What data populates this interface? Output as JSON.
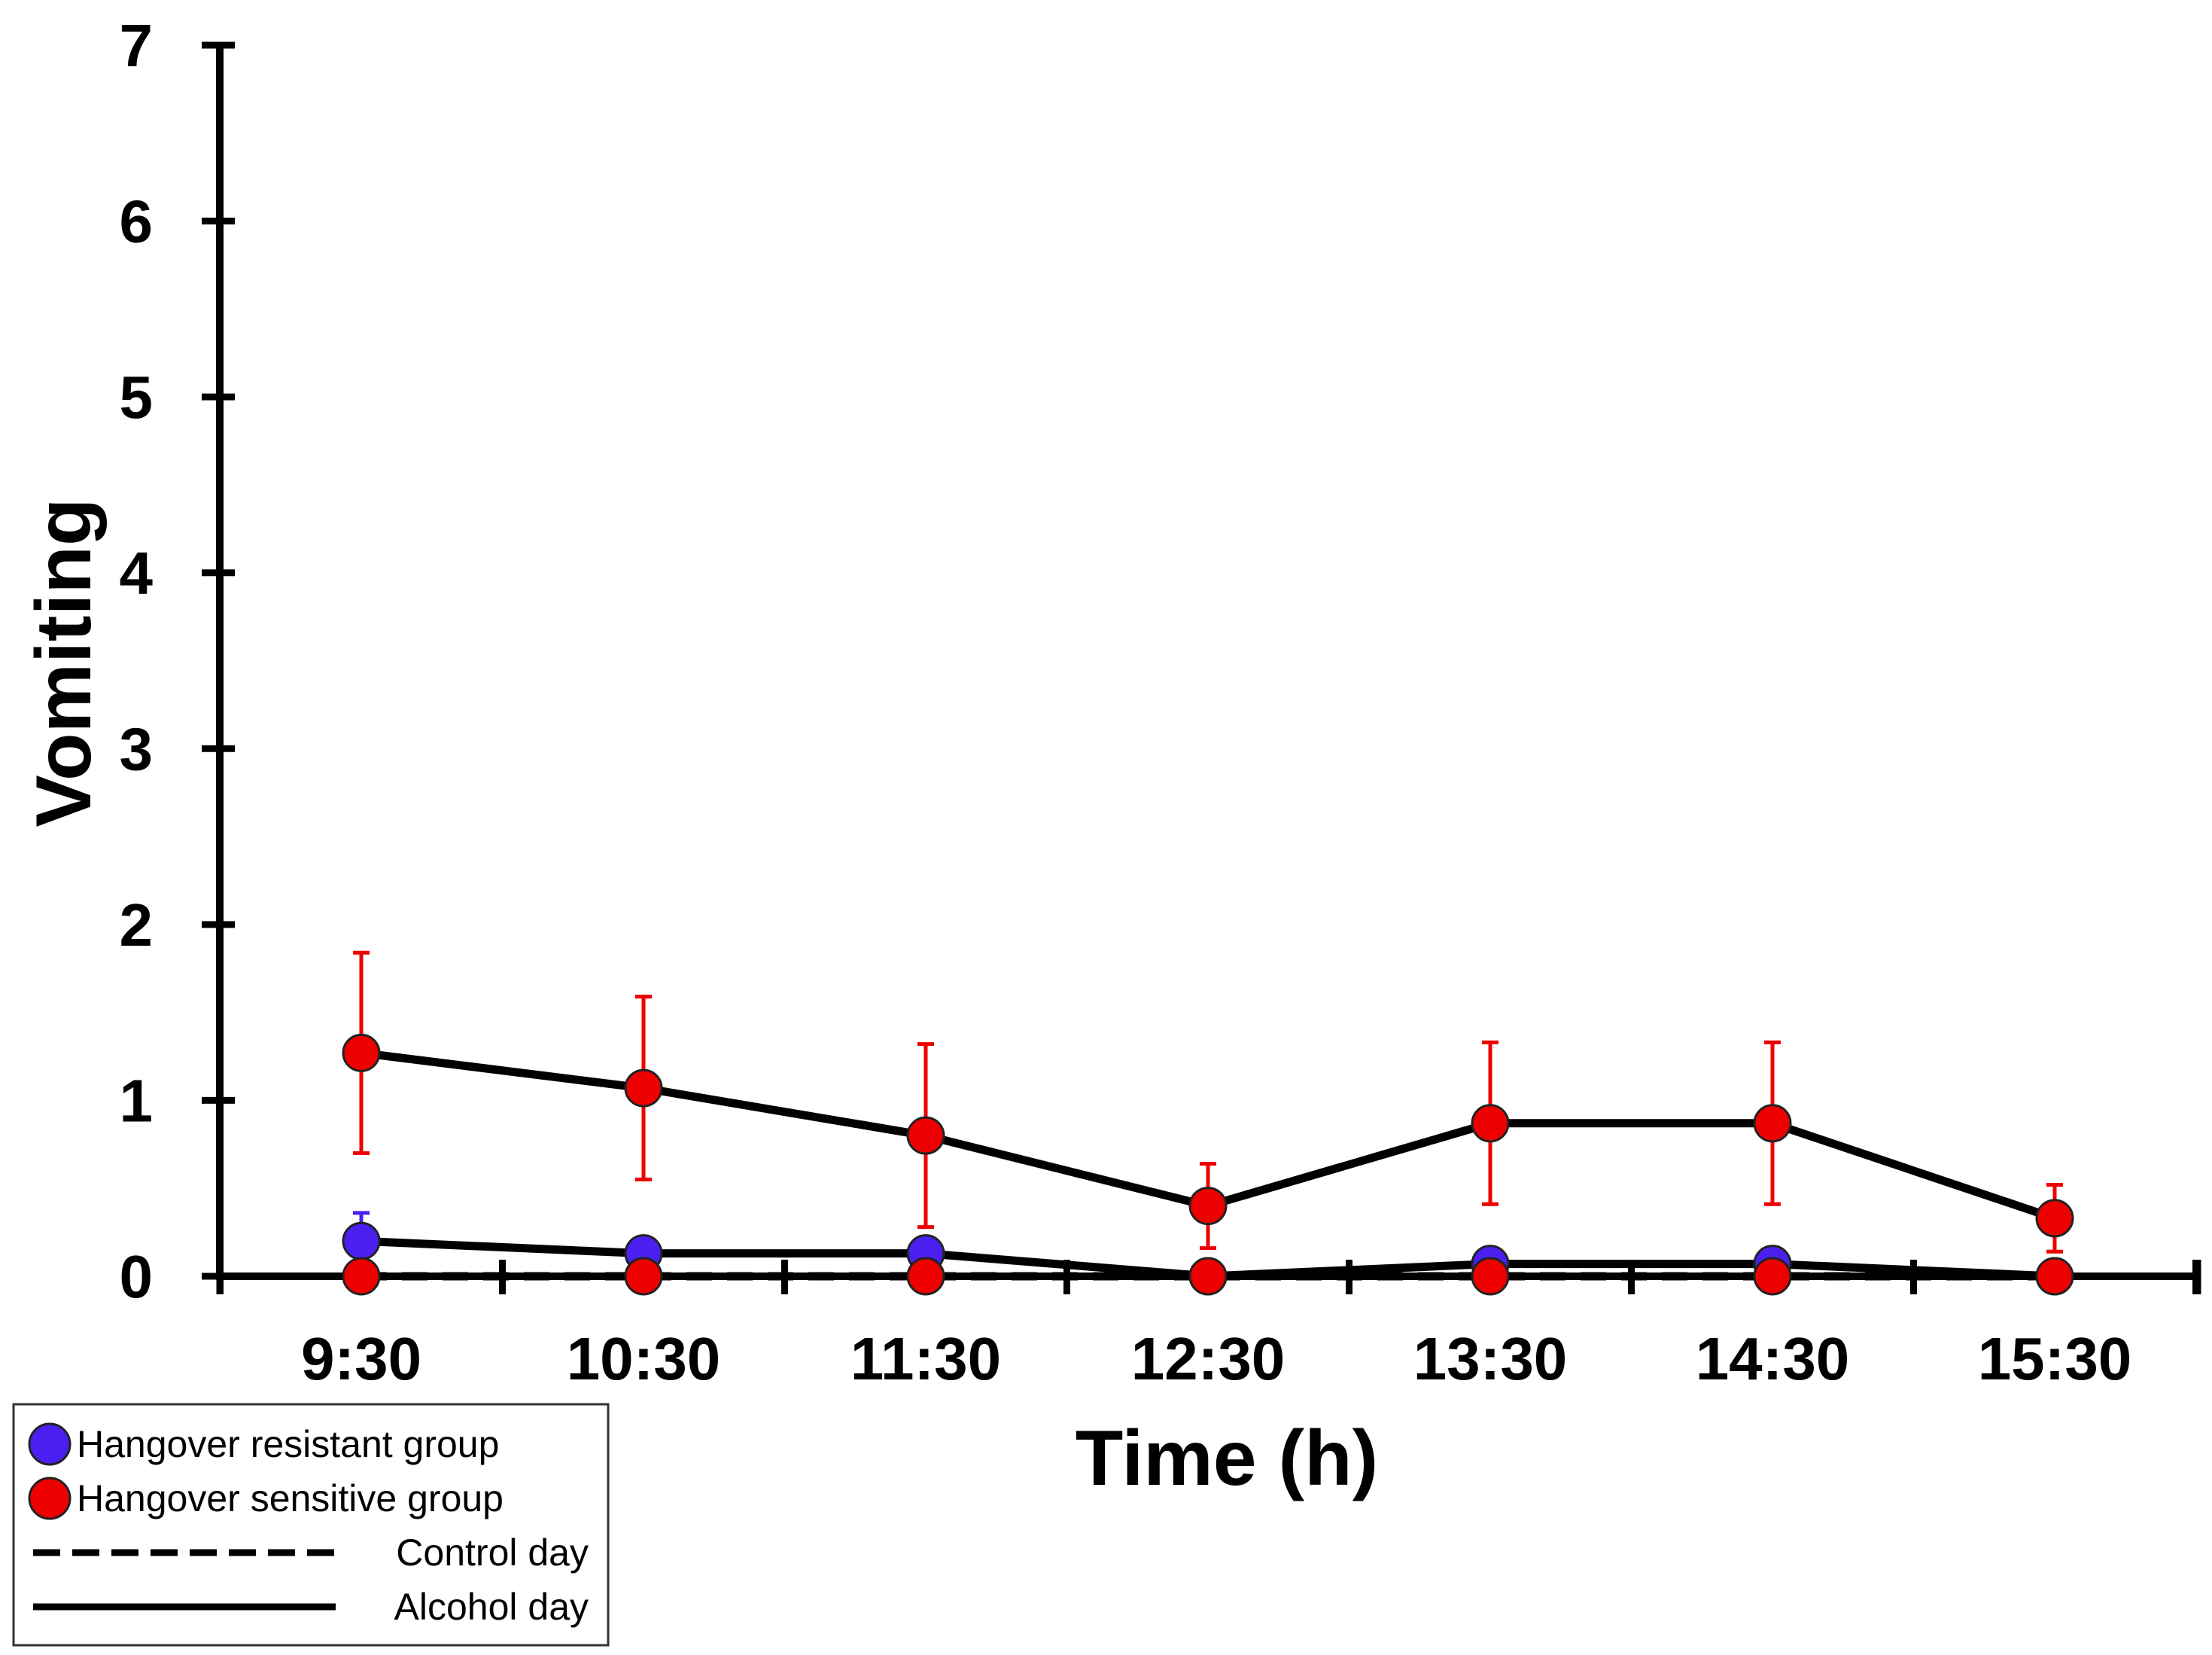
{
  "chart_data": {
    "type": "line",
    "title": "",
    "xlabel": "Time (h)",
    "ylabel": "Vomiting",
    "categories": [
      "9:30",
      "10:30",
      "11:30",
      "12:30",
      "13:30",
      "14:30",
      "15:30"
    ],
    "ylim": [
      0,
      7
    ],
    "yticks": [
      0,
      1,
      2,
      3,
      4,
      5,
      6,
      7
    ],
    "grid": false,
    "legend_position": "bottom-left",
    "series": [
      {
        "name": "Hangover resistant group",
        "day": "Alcohol day",
        "color": "#4a1ff0",
        "line": "solid",
        "values": [
          0.2,
          0.13,
          0.13,
          0.0,
          0.07,
          0.07,
          0.0
        ],
        "err_upper": [
          0.16,
          0.0,
          0.0,
          0.0,
          0.0,
          0.0,
          0.0
        ]
      },
      {
        "name": "Hangover sensitive group",
        "day": "Alcohol day",
        "color": "#ee0000",
        "line": "solid",
        "values": [
          1.27,
          1.07,
          0.8,
          0.4,
          0.87,
          0.87,
          0.33
        ],
        "err": [
          0.57,
          0.52,
          0.52,
          0.24,
          0.46,
          0.46,
          0.19
        ]
      },
      {
        "name": "Hangover resistant group",
        "day": "Control day",
        "color": "#4a1ff0",
        "line": "dashed",
        "values": [
          0.0,
          0.0,
          0.0,
          0.0,
          0.0,
          0.0,
          0.0
        ]
      },
      {
        "name": "Hangover sensitive group",
        "day": "Control day",
        "color": "#ee0000",
        "line": "dashed",
        "values": [
          0.0,
          0.0,
          0.0,
          0.0,
          0.0,
          0.0,
          0.0
        ]
      }
    ],
    "legend": [
      {
        "label": "Hangover resistant group",
        "marker": "circle",
        "color": "#4a1ff0"
      },
      {
        "label": "Hangover sensitive group",
        "marker": "circle",
        "color": "#ee0000"
      },
      {
        "label": "Control day",
        "line": "dashed"
      },
      {
        "label": "Alcohol day",
        "line": "solid"
      }
    ]
  }
}
